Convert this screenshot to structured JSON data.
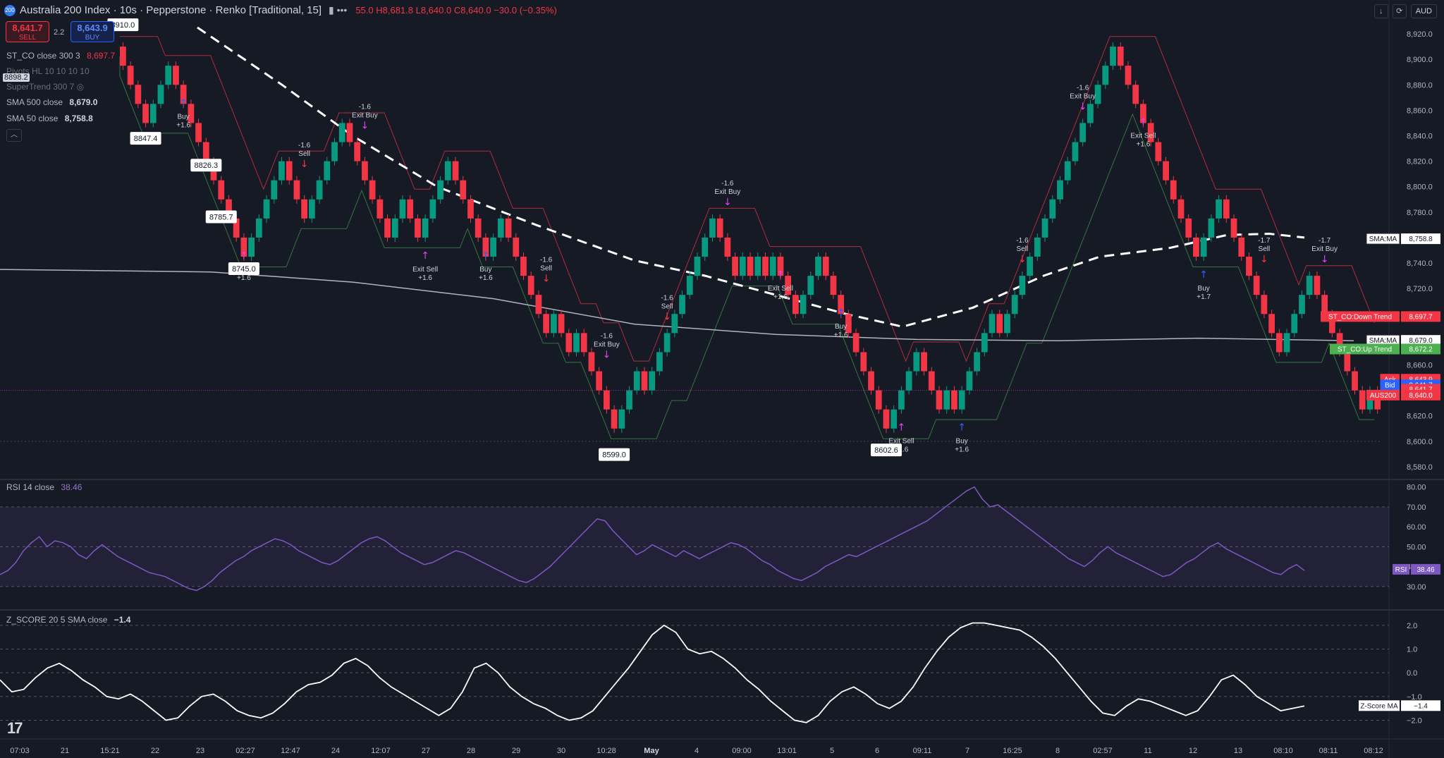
{
  "header": {
    "badge": "200",
    "title": "Australia 200 Index · 10s · Pepperstone · Renko [Traditional, 15]",
    "ohlc": "55.0 H8,681.8 L8,640.0 C8,640.0 −30.0 (−0.35%)",
    "currency": "AUD",
    "sell_price": "8,641.7",
    "sell_label": "SELL",
    "buy_price": "8,643.9",
    "buy_label": "BUY",
    "spread": "2.2"
  },
  "legend": {
    "stco_name": "ST_CO close 300 3",
    "stco_value": "8,697.7",
    "pivots_name": "Pivots HL 10 10 10 10",
    "supertrend_name": "SuperTrend 300 7",
    "sma500_name": "SMA 500 close",
    "sma500_value": "8,679.0",
    "sma50_name": "SMA 50 close",
    "sma50_value": "8,758.8",
    "pivot_tag": "8898.2",
    "rsi_name": "RSI 14 close",
    "rsi_value": "38.46",
    "z_name": "Z_SCORE 20 5 SMA close",
    "z_value": "−1.4"
  },
  "chart_data": [
    {
      "type": "candlestick",
      "title": "Australia 200 Index · 10s · Pepperstone · Renko [Traditional, 15]",
      "brick_size": 15,
      "ylim": [
        8570,
        8930
      ],
      "y_ticks": [
        "8,580.0",
        "8,600.0",
        "8,620.0",
        "8,640.0",
        "8,660.0",
        "8,680.0",
        "8,700.0",
        "8,720.0",
        "8,740.0",
        "8,760.0",
        "8,780.0",
        "8,800.0",
        "8,820.0",
        "8,840.0",
        "8,860.0",
        "8,880.0",
        "8,900.0",
        "8,920.0"
      ],
      "x_ticks": [
        "07:03",
        "21",
        "15:21",
        "22",
        "23",
        "02:27",
        "12:47",
        "24",
        "12:07",
        "27",
        "28",
        "29",
        "30",
        "10:28",
        "May",
        "4",
        "09:00",
        "13:01",
        "5",
        "6",
        "09:11",
        "7",
        "16:25",
        "8",
        "02:57",
        "11",
        "12",
        "13",
        "08:10",
        "08:11",
        "08:12"
      ],
      "close_path": [
        8910,
        8895,
        8880,
        8865,
        8850,
        8865,
        8880,
        8895,
        8880,
        8865,
        8850,
        8835,
        8820,
        8805,
        8790,
        8775,
        8760,
        8745,
        8760,
        8775,
        8790,
        8805,
        8820,
        8805,
        8790,
        8775,
        8790,
        8805,
        8820,
        8835,
        8850,
        8835,
        8820,
        8805,
        8790,
        8775,
        8760,
        8775,
        8790,
        8775,
        8760,
        8775,
        8790,
        8805,
        8820,
        8805,
        8790,
        8775,
        8760,
        8745,
        8760,
        8775,
        8760,
        8745,
        8730,
        8715,
        8700,
        8685,
        8700,
        8685,
        8670,
        8685,
        8670,
        8655,
        8640,
        8625,
        8610,
        8625,
        8640,
        8655,
        8640,
        8655,
        8670,
        8685,
        8700,
        8715,
        8730,
        8745,
        8760,
        8775,
        8760,
        8745,
        8730,
        8745,
        8730,
        8745,
        8730,
        8745,
        8730,
        8715,
        8700,
        8715,
        8730,
        8745,
        8730,
        8715,
        8700,
        8685,
        8670,
        8655,
        8640,
        8625,
        8610,
        8625,
        8640,
        8655,
        8670,
        8655,
        8640,
        8625,
        8640,
        8625,
        8640,
        8655,
        8670,
        8685,
        8700,
        8685,
        8700,
        8715,
        8730,
        8745,
        8760,
        8775,
        8790,
        8805,
        8820,
        8835,
        8850,
        8865,
        8880,
        8895,
        8910,
        8895,
        8880,
        8865,
        8850,
        8835,
        8820,
        8805,
        8790,
        8775,
        8760,
        8745,
        8760,
        8775,
        8790,
        8775,
        8760,
        8745,
        8730,
        8715,
        8700,
        8685,
        8670,
        8685,
        8700,
        8715,
        8730,
        8715,
        8700,
        8685,
        8670,
        8655,
        8640,
        8625,
        8640,
        8625
      ],
      "pivot_labels": [
        {
          "value": "8847.4"
        },
        {
          "value": "8745.0"
        },
        {
          "value": "8826.3"
        },
        {
          "value": "8785.7"
        },
        {
          "value": "8599.0"
        },
        {
          "value": "8602.6"
        },
        {
          "value": "8910.0"
        }
      ],
      "signals": [
        {
          "kind": "buy",
          "label": "Buy +1.6"
        },
        {
          "kind": "exit_sell",
          "label": "Exit Sell +1.6"
        },
        {
          "kind": "sell",
          "label": "-1.6 Sell"
        },
        {
          "kind": "exit_buy",
          "label": "-1.6 Exit Buy"
        },
        {
          "kind": "exit_sell",
          "label": "Exit Sell +1.6"
        },
        {
          "kind": "buy",
          "label": "Buy +1.6"
        },
        {
          "kind": "sell",
          "label": "-1.6 Sell"
        },
        {
          "kind": "exit_buy",
          "label": "-1.6 Exit Buy"
        },
        {
          "kind": "sell",
          "label": "-1.6 Sell"
        },
        {
          "kind": "exit_buy",
          "label": "-1.6 Exit Buy"
        },
        {
          "kind": "exit_sell",
          "label": "Exit Sell +1.6"
        },
        {
          "kind": "buy",
          "label": "Buy +1.6"
        },
        {
          "kind": "exit_sell",
          "label": "Exit Sell +1.6"
        },
        {
          "kind": "buy",
          "label": "Buy +1.6"
        },
        {
          "kind": "sell",
          "label": "-1.6 Sell"
        },
        {
          "kind": "exit_buy",
          "label": "-1.6 Exit Buy"
        },
        {
          "kind": "exit_sell",
          "label": "Exit Sell +1.6"
        },
        {
          "kind": "buy",
          "label": "Buy +1.7"
        },
        {
          "kind": "sell",
          "label": "-1.7 Sell"
        },
        {
          "kind": "exit_buy",
          "label": "-1.7 Exit Buy"
        }
      ],
      "price_tags": [
        {
          "label": "SMA:MA",
          "value": "8,758.8",
          "color": "#ffffff"
        },
        {
          "label": "ST_CO:Down Trend",
          "value": "8,697.7",
          "color": "#f23645"
        },
        {
          "label": "SMA:MA",
          "value": "8,679.0",
          "color": "#ffffff"
        },
        {
          "label": "ST_CO:Up Trend",
          "value": "8,672.2",
          "color": "#4caf50"
        },
        {
          "label": "Ask",
          "value": "8,643.9",
          "color": "#f23645"
        },
        {
          "label": "Bid",
          "value": "8,641.7",
          "color": "#2962ff"
        },
        {
          "label": "",
          "value": "8,641.7",
          "color": "#f23645"
        },
        {
          "label": "AUS200",
          "value": "8,640.0",
          "color": "#f23645"
        }
      ]
    },
    {
      "type": "line",
      "title": "RSI 14 close",
      "ylim": [
        20,
        82
      ],
      "y_ticks": [
        "30.00",
        "40.00",
        "50.00",
        "60.00",
        "70.00",
        "80.00"
      ],
      "levels": [
        30,
        50,
        70
      ],
      "value_tag": {
        "label": "RSI",
        "value": "38.46"
      },
      "values": [
        36,
        38,
        42,
        48,
        52,
        55,
        50,
        53,
        52,
        50,
        46,
        44,
        48,
        51,
        48,
        45,
        43,
        41,
        39,
        37,
        36,
        35,
        33,
        31,
        29,
        28,
        30,
        33,
        37,
        40,
        43,
        45,
        48,
        50,
        52,
        54,
        53,
        51,
        48,
        46,
        44,
        42,
        41,
        43,
        46,
        49,
        52,
        54,
        55,
        53,
        50,
        47,
        45,
        43,
        41,
        42,
        44,
        46,
        48,
        47,
        45,
        43,
        41,
        39,
        37,
        35,
        33,
        32,
        34,
        37,
        40,
        44,
        48,
        52,
        56,
        60,
        64,
        63,
        58,
        54,
        50,
        46,
        48,
        51,
        49,
        47,
        45,
        48,
        46,
        44,
        46,
        48,
        50,
        52,
        51,
        49,
        46,
        43,
        41,
        38,
        36,
        34,
        33,
        35,
        37,
        40,
        42,
        44,
        46,
        45,
        47,
        49,
        51,
        53,
        55,
        57,
        59,
        61,
        63,
        66,
        69,
        72,
        75,
        78,
        80,
        74,
        70,
        71,
        68,
        65,
        62,
        59,
        56,
        53,
        50,
        47,
        44,
        42,
        40,
        43,
        47,
        50,
        47,
        45,
        43,
        41,
        39,
        37,
        35,
        36,
        39,
        42,
        44,
        47,
        50,
        52,
        49,
        47,
        45,
        43,
        41,
        39,
        37,
        36,
        39,
        41,
        38
      ]
    },
    {
      "type": "line",
      "title": "Z_SCORE 20 5 SMA close",
      "ylim": [
        -2.7,
        2.5
      ],
      "y_ticks": [
        "−2.0",
        "−1.0",
        "0.0",
        "1.0",
        "2.0"
      ],
      "levels": [
        -2,
        -1,
        0,
        1,
        2
      ],
      "value_tag": {
        "label": "Z-Score MA",
        "value": "−1.4"
      },
      "values": [
        -0.3,
        -0.8,
        -0.7,
        -0.2,
        0.2,
        0.4,
        0.1,
        -0.3,
        -0.6,
        -1.0,
        -1.1,
        -0.9,
        -1.2,
        -1.6,
        -2.0,
        -1.9,
        -1.4,
        -1.0,
        -0.9,
        -1.2,
        -1.6,
        -1.8,
        -1.9,
        -1.7,
        -1.3,
        -0.8,
        -0.5,
        -0.4,
        -0.1,
        0.4,
        0.6,
        0.3,
        -0.2,
        -0.6,
        -0.9,
        -1.2,
        -1.5,
        -1.8,
        -1.5,
        -0.8,
        0.2,
        0.4,
        0.0,
        -0.6,
        -1.0,
        -1.3,
        -1.5,
        -1.8,
        -2.0,
        -1.9,
        -1.6,
        -1.0,
        -0.4,
        0.2,
        0.9,
        1.6,
        2.0,
        1.7,
        1.0,
        0.8,
        0.9,
        0.6,
        0.2,
        -0.3,
        -0.7,
        -1.2,
        -1.6,
        -2.0,
        -2.1,
        -1.8,
        -1.2,
        -0.8,
        -0.6,
        -0.9,
        -1.3,
        -1.5,
        -1.2,
        -0.6,
        0.2,
        0.9,
        1.5,
        1.9,
        2.1,
        2.1,
        2.0,
        1.9,
        1.8,
        1.5,
        1.1,
        0.6,
        0.0,
        -0.6,
        -1.2,
        -1.7,
        -1.8,
        -1.4,
        -1.1,
        -1.2,
        -1.4,
        -1.6,
        -1.8,
        -1.6,
        -1.0,
        -0.3,
        -0.1,
        -0.5,
        -1.0,
        -1.3,
        -1.6,
        -1.5,
        -1.4
      ]
    }
  ]
}
